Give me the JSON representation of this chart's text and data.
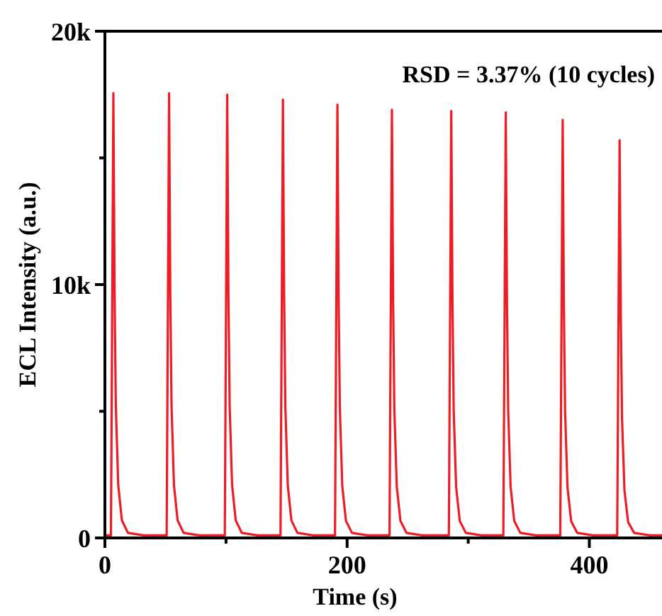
{
  "chart_data": {
    "type": "line",
    "xlabel": "Time (s)",
    "ylabel": "ECL Intensity (a.u.)",
    "annotations": [
      "RSD = 3.37% (10 cycles)"
    ],
    "xlim": [
      0,
      460
    ],
    "ylim": [
      0,
      20000
    ],
    "xticks": [
      0,
      {
        "value": 100,
        "label": null
      },
      200,
      {
        "value": 300,
        "label": null
      },
      400
    ],
    "yticks": [
      0,
      {
        "value": 5000,
        "label": null
      },
      {
        "value": 10000,
        "label": "10k"
      },
      {
        "value": 15000,
        "label": null
      },
      {
        "value": 20000,
        "label": "20k"
      }
    ],
    "grid": false,
    "marker": "none",
    "line_style": "solid",
    "series": [
      {
        "color": "#ee1c25",
        "x": [
          0,
          5,
          7,
          8,
          9,
          11,
          14,
          19,
          32,
          51,
          53,
          54,
          55,
          57,
          60,
          65,
          78,
          99,
          101,
          102,
          103,
          105,
          108,
          113,
          126,
          145,
          147,
          148,
          149,
          151,
          154,
          159,
          172,
          190,
          192,
          193,
          194,
          196,
          199,
          204,
          217,
          235,
          237,
          238,
          239,
          241,
          244,
          249,
          262,
          284,
          286,
          287,
          288,
          290,
          293,
          298,
          311,
          329,
          331,
          332,
          333,
          335,
          338,
          343,
          356,
          376,
          378,
          379,
          380,
          382,
          385,
          390,
          403,
          423,
          425,
          426,
          427,
          429,
          432,
          437,
          450,
          460
        ],
        "values": [
          100,
          100,
          17550,
          9650,
          5270,
          2100,
          700,
          200,
          100,
          100,
          17550,
          9650,
          5270,
          2100,
          700,
          200,
          100,
          100,
          17500,
          9630,
          5250,
          2100,
          700,
          200,
          100,
          100,
          17300,
          9520,
          5190,
          2080,
          690,
          200,
          100,
          100,
          17100,
          9410,
          5130,
          2050,
          680,
          200,
          100,
          100,
          16900,
          9300,
          5070,
          2030,
          680,
          200,
          100,
          100,
          16850,
          9270,
          5060,
          2020,
          670,
          200,
          100,
          100,
          16800,
          9240,
          5040,
          2020,
          670,
          200,
          100,
          100,
          16500,
          9080,
          4950,
          1980,
          660,
          200,
          100,
          100,
          15700,
          8640,
          4710,
          1880,
          630,
          200,
          100,
          100
        ]
      }
    ]
  }
}
